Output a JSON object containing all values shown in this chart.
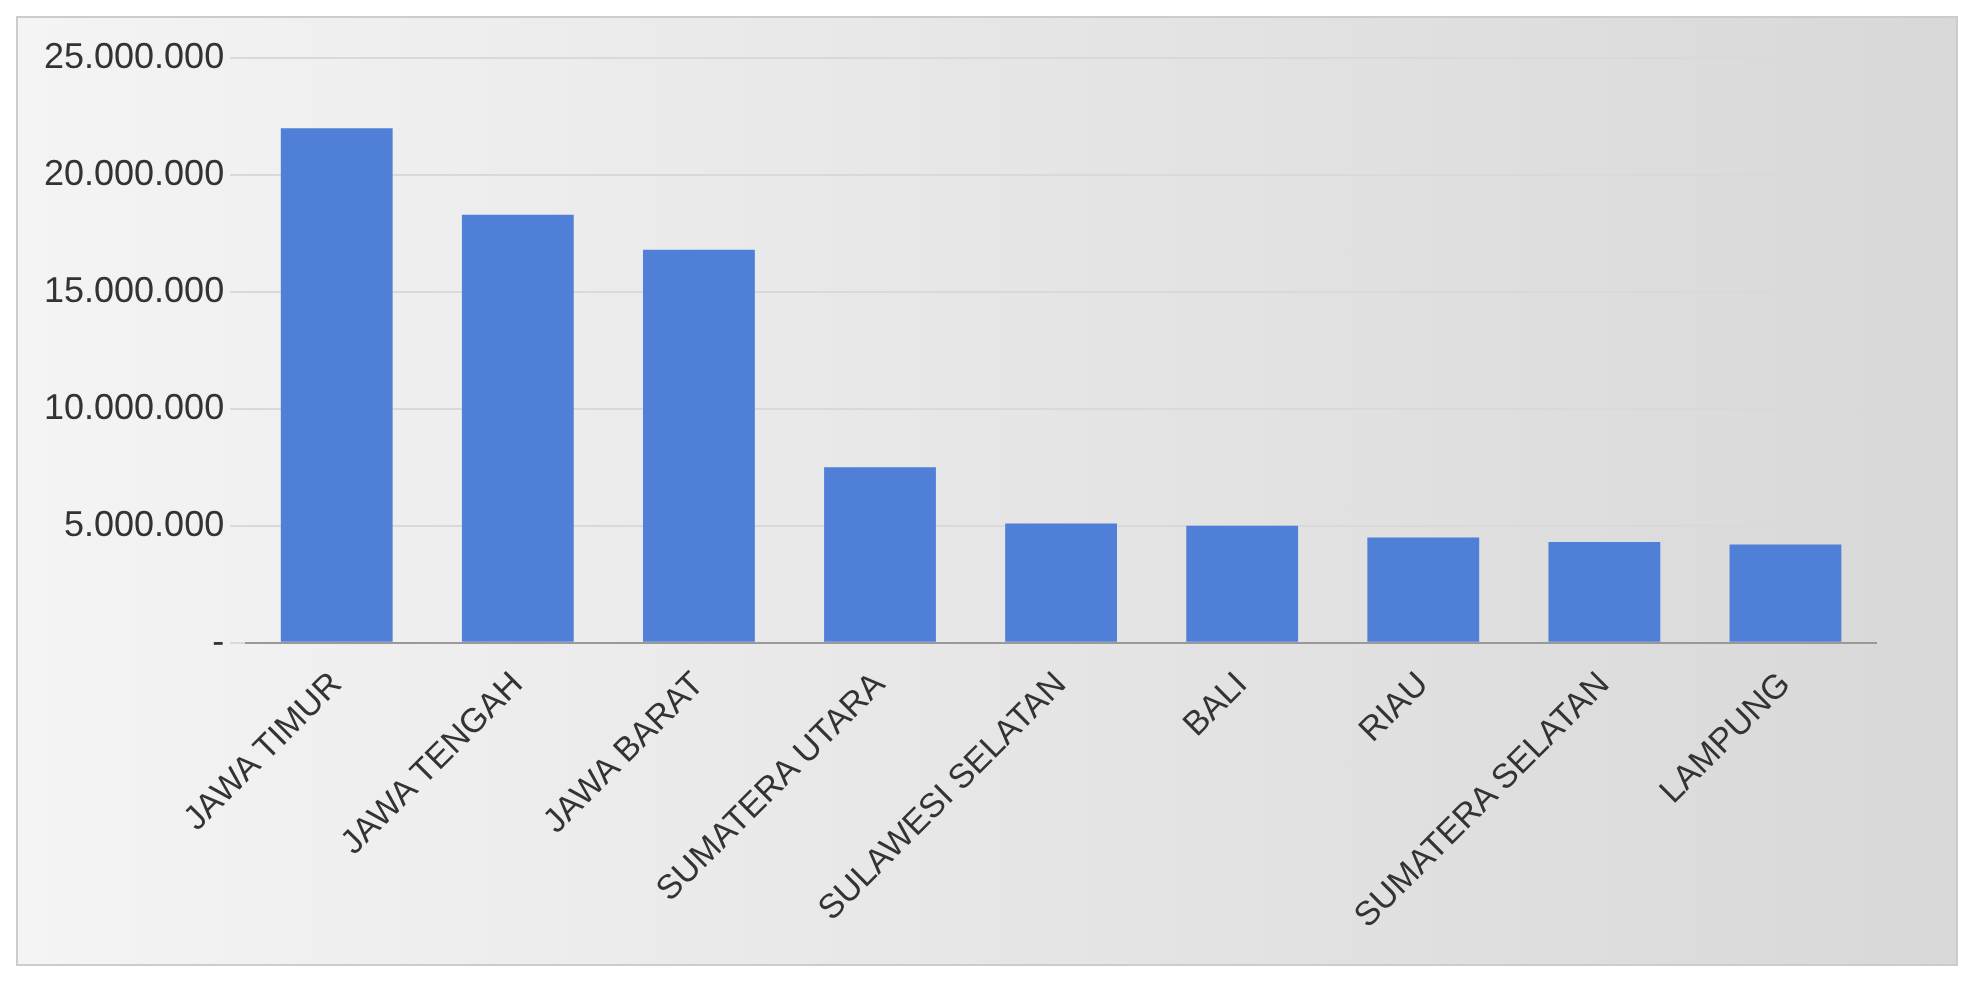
{
  "chart_data": {
    "type": "bar",
    "categories": [
      "JAWA TIMUR",
      "JAWA TENGAH",
      "JAWA BARAT",
      "SUMATERA UTARA",
      "SULAWESI SELATAN",
      "BALI",
      "RIAU",
      "SUMATERA SELATAN",
      "LAMPUNG"
    ],
    "values": [
      22000000,
      18300000,
      16800000,
      7500000,
      5100000,
      5000000,
      4500000,
      4300000,
      4200000
    ],
    "color": "#4f7fd6",
    "ylim": [
      0,
      25000000
    ],
    "yticks": [
      {
        "value": 0,
        "label": "-"
      },
      {
        "value": 5000000,
        "label": "5.000.000"
      },
      {
        "value": 10000000,
        "label": "10.000.000"
      },
      {
        "value": 15000000,
        "label": "15.000.000"
      },
      {
        "value": 20000000,
        "label": "20.000.000"
      },
      {
        "value": 25000000,
        "label": "25.000.000"
      }
    ],
    "grid": "y"
  }
}
